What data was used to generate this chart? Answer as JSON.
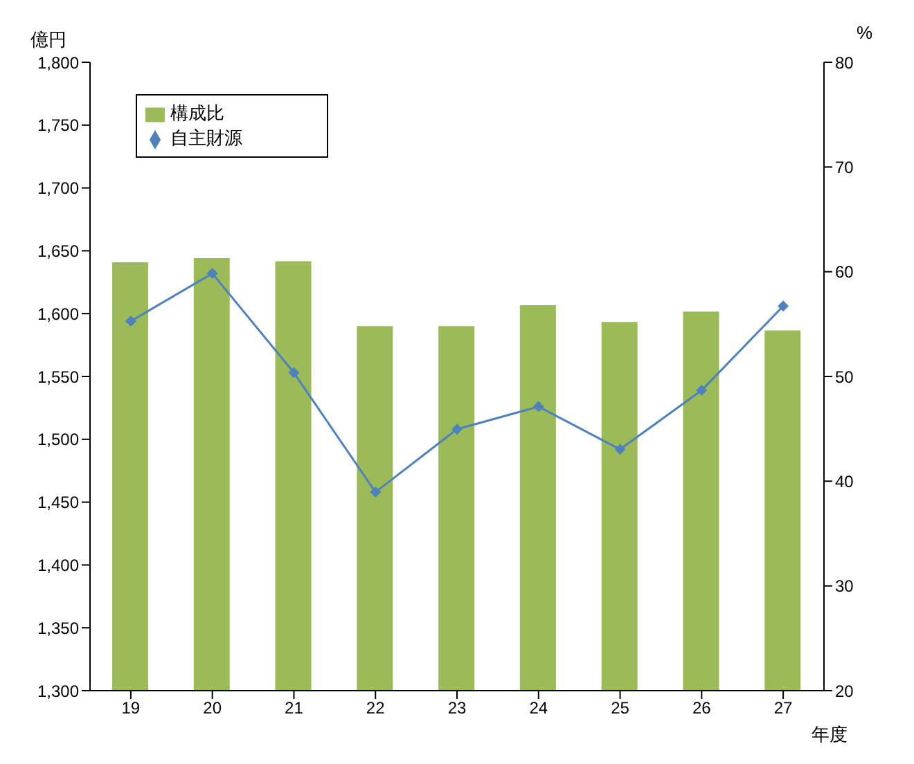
{
  "chart_data": {
    "type": "bar",
    "ylabel": "億円",
    "y2label": "%",
    "xlabel": "年度",
    "categories": [
      "19",
      "20",
      "21",
      "22",
      "23",
      "24",
      "25",
      "26",
      "27"
    ],
    "series": [
      {
        "name": "構成比",
        "axis": "y2",
        "color": "#9bbb59",
        "values": [
          60.9,
          61.3,
          61.0,
          54.8,
          54.8,
          56.8,
          55.2,
          56.2,
          54.4
        ]
      },
      {
        "name": "自主財源",
        "type": "line",
        "axis": "y",
        "color": "#4f81bd",
        "marker": "diamond",
        "values": [
          1594,
          1632,
          1553,
          1458,
          1508,
          1526,
          1492,
          1539,
          1606
        ]
      }
    ],
    "ylim": [
      1300,
      1800
    ],
    "yticks": [
      {
        "value": 1300,
        "label": "1,300"
      },
      {
        "value": 1350,
        "label": "1,350"
      },
      {
        "value": 1400,
        "label": "1,400"
      },
      {
        "value": 1450,
        "label": "1,450"
      },
      {
        "value": 1500,
        "label": "1,500"
      },
      {
        "value": 1550,
        "label": "1,550"
      },
      {
        "value": 1600,
        "label": "1,600"
      },
      {
        "value": 1650,
        "label": "1,650"
      },
      {
        "value": 1700,
        "label": "1,700"
      },
      {
        "value": 1750,
        "label": "1,750"
      },
      {
        "value": 1800,
        "label": "1,800"
      }
    ],
    "y2lim": [
      20,
      80
    ],
    "y2ticks": [
      20,
      30,
      40,
      50,
      60,
      70,
      80
    ],
    "grid": false,
    "legend": "top left"
  }
}
